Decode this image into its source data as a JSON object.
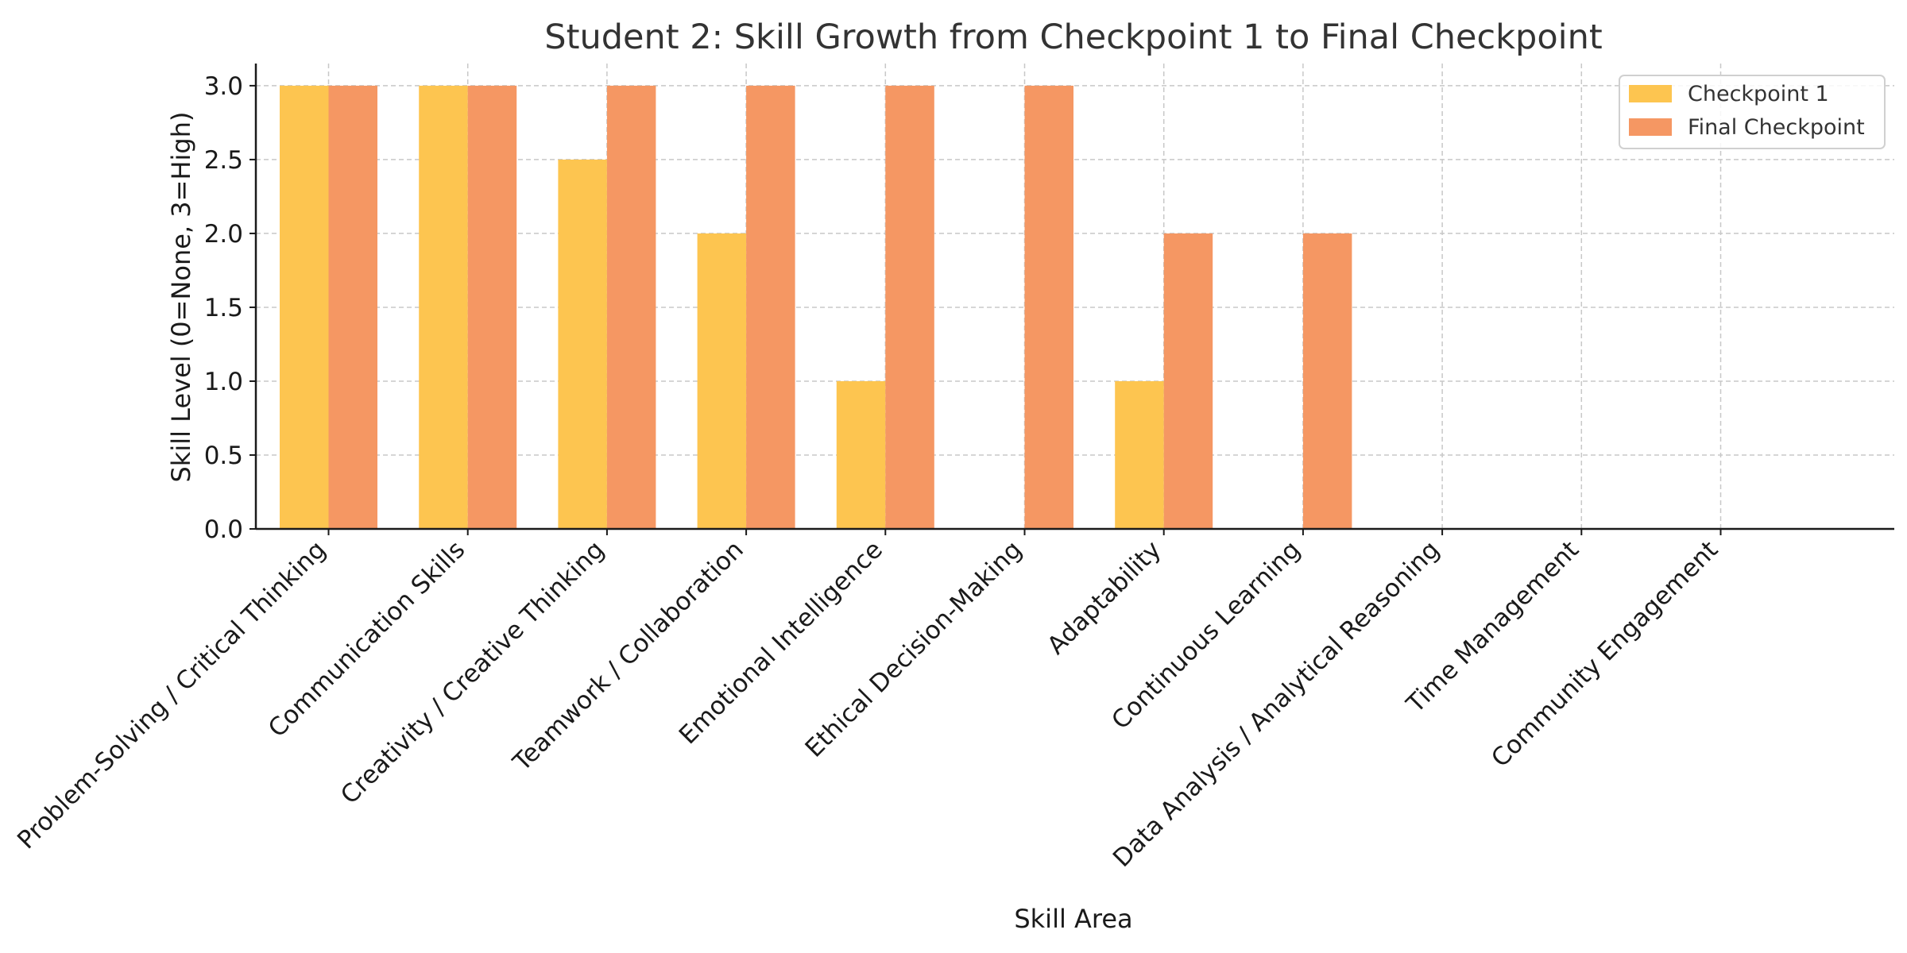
{
  "chart_data": {
    "type": "bar",
    "title": "Student 2: Skill Growth from Checkpoint 1 to Final Checkpoint",
    "xlabel": "Skill Area",
    "ylabel": "Skill Level (0=None, 3=High)",
    "categories": [
      "Problem-Solving / Critical Thinking",
      "Communication Skills",
      "Creativity / Creative Thinking",
      "Teamwork / Collaboration",
      "Emotional Intelligence",
      "Ethical Decision-Making",
      "Adaptability",
      "Continuous Learning",
      "Data Analysis / Analytical Reasoning",
      "Time Management",
      "Community Engagement"
    ],
    "series": [
      {
        "name": "Checkpoint 1",
        "color": "#FDC550",
        "values": [
          3,
          3,
          2.5,
          2,
          1,
          0,
          1,
          0,
          0,
          0,
          0
        ]
      },
      {
        "name": "Final Checkpoint",
        "color": "#F59763",
        "values": [
          3,
          3,
          3,
          3,
          3,
          3,
          2,
          2,
          0,
          0,
          0
        ]
      }
    ],
    "ylim": [
      0,
      3.15
    ],
    "yticks": [
      0.0,
      0.5,
      1.0,
      1.5,
      2.0,
      2.5,
      3.0
    ],
    "ytick_labels": [
      "0.0",
      "0.5",
      "1.0",
      "1.5",
      "2.0",
      "2.5",
      "3.0"
    ],
    "grid": true,
    "legend_position": "top-right"
  }
}
